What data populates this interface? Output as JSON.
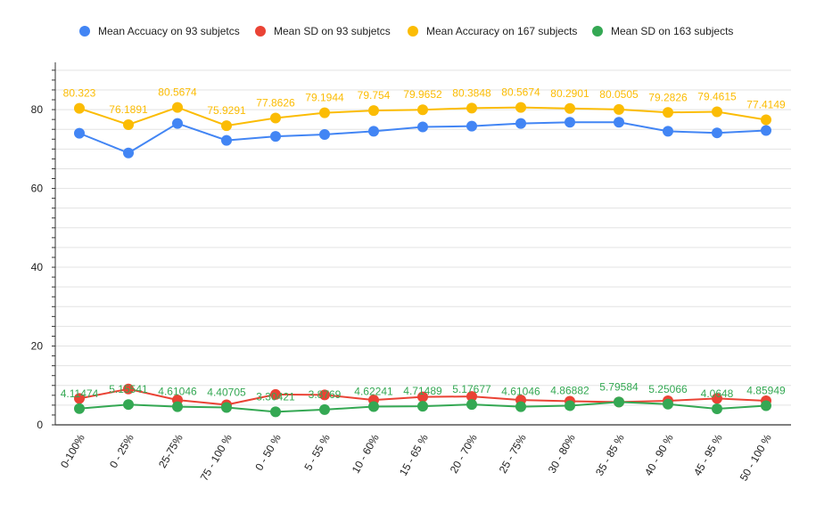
{
  "chart_data": {
    "type": "line",
    "title": "",
    "xlabel": "",
    "ylabel": "",
    "ylim": [
      0,
      92
    ],
    "y_ticks": [
      "0",
      "20",
      "40",
      "60",
      "80"
    ],
    "grid": true,
    "legend_position": "top",
    "categories": [
      "0-100%",
      "0 - 25%",
      "25-75%",
      "75 - 100 %",
      "0 - 50 %",
      "5 - 55 %",
      "10 - 60%",
      "15 - 65 %",
      "20 - 70%",
      "25 - 75%",
      "30 - 80%",
      "35 - 85 %",
      "40 - 90 %",
      "45 - 95 %",
      "50 - 100 %"
    ],
    "series": [
      {
        "name": "Mean Accuacy on 93 subjetcs",
        "color": "#4285f4",
        "values": [
          74,
          69,
          76.5,
          72.2,
          73.2,
          73.7,
          74.5,
          75.6,
          75.8,
          76.5,
          76.8,
          76.8,
          74.5,
          74.1,
          74.7
        ],
        "labels": []
      },
      {
        "name": "Mean SD on 93 subjetcs",
        "color": "#ea4335",
        "values": [
          6.7,
          9.1,
          6.3,
          5.1,
          7.7,
          7.6,
          6.3,
          7.1,
          7.2,
          6.3,
          6.0,
          5.8,
          6.1,
          6.7,
          6.1
        ],
        "labels": []
      },
      {
        "name": "Mean Accuracy on 167 subjects",
        "color": "#fbbc04",
        "values": [
          80.323,
          76.1891,
          80.5674,
          75.9291,
          77.8626,
          79.1944,
          79.754,
          79.9652,
          80.3848,
          80.5674,
          80.2901,
          80.0505,
          79.2826,
          79.4615,
          77.4149
        ],
        "labels": [
          "80.323",
          "76.1891",
          "80.5674",
          "75.9291",
          "77.8626",
          "79.1944",
          "79.754",
          "79.9652",
          "80.3848",
          "80.5674",
          "80.2901",
          "80.0505",
          "79.2826",
          "79.4615",
          "77.4149"
        ]
      },
      {
        "name": "Mean SD on 163 subjects",
        "color": "#34a853",
        "values": [
          4.11474,
          5.15541,
          4.61046,
          4.40705,
          3.30421,
          3.8769,
          4.62241,
          4.71489,
          5.17677,
          4.61046,
          4.86882,
          5.79584,
          5.25066,
          4.0648,
          4.85949
        ],
        "labels": [
          "4.11474",
          "5.15541",
          "4.61046",
          "4.40705",
          "3.30421",
          "3.8769",
          "4.62241",
          "4.71489",
          "5.17677",
          "4.61046",
          "4.86882",
          "5.79584",
          "5.25066",
          "4.0648",
          "4.85949"
        ]
      }
    ]
  }
}
